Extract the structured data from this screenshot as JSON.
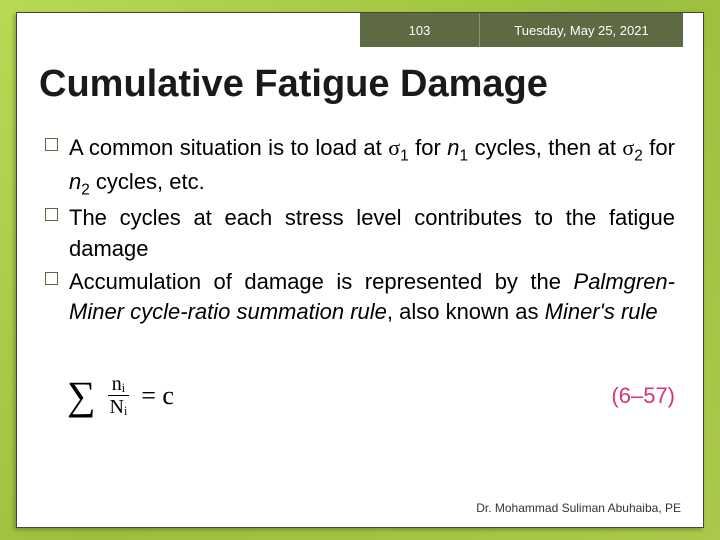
{
  "header": {
    "page_number": "103",
    "date": "Tuesday, May 25, 2021",
    "bg_color": "#5d6a42",
    "text_color": "#ffffff"
  },
  "title": {
    "text": "Cumulative Fatigue Damage",
    "fontsize": 38,
    "color": "#1a1a1a"
  },
  "bullets": [
    {
      "parts": [
        {
          "t": "A common situation is to load at "
        },
        {
          "t": "σ",
          "cls": "sigma"
        },
        {
          "t": "1",
          "sub": true
        },
        {
          "t": " for "
        },
        {
          "t": "n",
          "cls": "italic"
        },
        {
          "t": "1",
          "sub": true
        },
        {
          "t": " cycles, then at "
        },
        {
          "t": "σ",
          "cls": "sigma"
        },
        {
          "t": "2",
          "sub": true
        },
        {
          "t": " for "
        },
        {
          "t": "n",
          "cls": "italic"
        },
        {
          "t": "2",
          "sub": true
        },
        {
          "t": " cycles, etc."
        }
      ]
    },
    {
      "parts": [
        {
          "t": "The cycles at each stress level contributes to the fatigue damage"
        }
      ]
    },
    {
      "parts": [
        {
          "t": "Accumulation of damage is represented by the "
        },
        {
          "t": "Palmgren-Miner cycle-ratio summation rule",
          "cls": "italic"
        },
        {
          "t": ", also known as "
        },
        {
          "t": "Miner's rule",
          "cls": "italic"
        }
      ]
    }
  ],
  "equation": {
    "numerator": "nᵢ",
    "denominator": "Nᵢ",
    "rhs": "= c",
    "eqnum": "(6–57)",
    "eqnum_color": "#d63384"
  },
  "footer": {
    "text": "Dr. Mohammad Suliman Abuhaiba, PE"
  },
  "style": {
    "slide_bg_gradient": [
      "#b8d954",
      "#9cbf3d",
      "#aac94a"
    ],
    "paper_bg": "#ffffff",
    "bullet_border_color": "#5d6a42",
    "body_fontsize": 22
  }
}
